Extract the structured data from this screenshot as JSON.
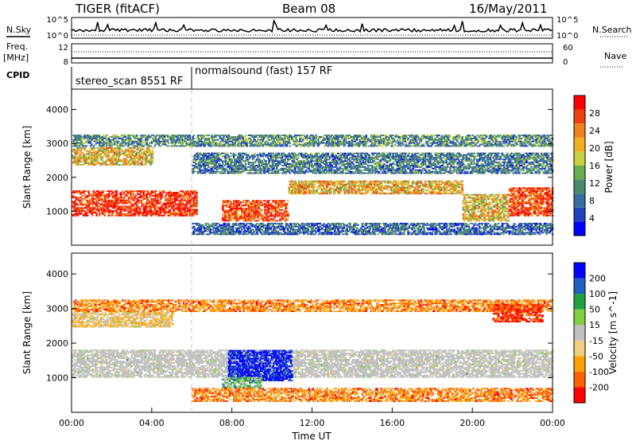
{
  "header": {
    "station": "TIGER (fitACF)",
    "beam": "Beam 08",
    "date": "16/May/2011"
  },
  "top_panel": {
    "left_labels": {
      "nsky": "N.Sky",
      "freq": "Freq.",
      "freq_unit": "[MHz]",
      "cpid": "CPID"
    },
    "right_labels": {
      "nsearch": "N.Search",
      "nave": "Nave"
    },
    "nsky_ticks": [
      "10^5",
      "10^0"
    ],
    "nsearch_ticks": [
      "10^5",
      "10^0"
    ],
    "freq_ticks": [
      "12",
      "8"
    ],
    "nave_ticks": [
      "60",
      "0"
    ],
    "cpid_segments": [
      {
        "label": "stereo_scan 8551 RF",
        "start_hour": 0,
        "end_hour": 6
      },
      {
        "label": "normalsound (fast) 157 RF",
        "start_hour": 6,
        "end_hour": 24
      }
    ]
  },
  "chart_data": [
    {
      "type": "heatmap",
      "title": "",
      "xlabel": "",
      "ylabel": "Slant Range [km]",
      "x_range_hours": [
        0,
        24
      ],
      "ylim": [
        0,
        4600
      ],
      "yticks": [
        "1000",
        "2000",
        "3000",
        "4000"
      ],
      "colorbar": {
        "label": "Power [dB]",
        "ticks": [
          "28",
          "24",
          "20",
          "16",
          "12",
          "8",
          "4"
        ],
        "range": [
          0,
          32
        ],
        "colors": [
          "#0000ff",
          "#2040c0",
          "#3a6ea0",
          "#4a8a70",
          "#6aaa50",
          "#c8d040",
          "#f0b020",
          "#f08020",
          "#f04010",
          "#ff0000"
        ]
      },
      "bands": [
        {
          "start": 0.0,
          "end": 6.2,
          "r_low": 850,
          "r_high": 1600,
          "level": 0.9
        },
        {
          "start": 0.0,
          "end": 4.0,
          "r_low": 2350,
          "r_high": 2850,
          "level": 0.6
        },
        {
          "start": 0.0,
          "end": 24.0,
          "r_low": 2900,
          "r_high": 3250,
          "level": 0.35
        },
        {
          "start": 7.5,
          "end": 10.8,
          "r_low": 700,
          "r_high": 1300,
          "level": 0.85
        },
        {
          "start": 10.8,
          "end": 19.5,
          "r_low": 1500,
          "r_high": 1900,
          "level": 0.65
        },
        {
          "start": 19.5,
          "end": 21.8,
          "r_low": 700,
          "r_high": 1500,
          "level": 0.6
        },
        {
          "start": 21.8,
          "end": 24.0,
          "r_low": 850,
          "r_high": 1700,
          "level": 0.85
        },
        {
          "start": 6.0,
          "end": 24.0,
          "r_low": 2100,
          "r_high": 2700,
          "level": 0.3
        },
        {
          "start": 6.0,
          "end": 24.0,
          "r_low": 300,
          "r_high": 650,
          "level": 0.25
        }
      ]
    },
    {
      "type": "heatmap",
      "title": "",
      "xlabel": "Time UT",
      "ylabel": "Slant Range [km]",
      "x_range_hours": [
        0,
        24
      ],
      "xticks": [
        "00:00",
        "04:00",
        "08:00",
        "12:00",
        "16:00",
        "20:00",
        "00:00"
      ],
      "ylim": [
        0,
        4600
      ],
      "yticks": [
        "1000",
        "2000",
        "3000",
        "4000"
      ],
      "colorbar": {
        "label": "Velocity [m s^-1]",
        "ticks": [
          "200",
          "100",
          "50",
          "15",
          "-15",
          "-50",
          "-100",
          "-200"
        ],
        "range": [
          -250,
          250
        ],
        "colors": [
          "#ff0000",
          "#ff6000",
          "#ffa000",
          "#f0d080",
          "#c0c0c0",
          "#80d040",
          "#20a040",
          "#2060c0",
          "#0000ff"
        ]
      },
      "bands": [
        {
          "start": 0.0,
          "end": 24.0,
          "r_low": 1000,
          "r_high": 1800,
          "level": 0.5
        },
        {
          "start": 7.8,
          "end": 11.0,
          "r_low": 900,
          "r_high": 1800,
          "level": 0.95
        },
        {
          "start": 7.5,
          "end": 9.5,
          "r_low": 700,
          "r_high": 1000,
          "level": 0.65
        },
        {
          "start": 0.0,
          "end": 24.0,
          "r_low": 2900,
          "r_high": 3250,
          "level": 0.25
        },
        {
          "start": 0.0,
          "end": 5.0,
          "r_low": 2450,
          "r_high": 2900,
          "level": 0.4
        },
        {
          "start": 6.0,
          "end": 24.0,
          "r_low": 300,
          "r_high": 700,
          "level": 0.25
        },
        {
          "start": 21.0,
          "end": 23.5,
          "r_low": 2600,
          "r_high": 3100,
          "level": 0.1
        }
      ]
    }
  ]
}
